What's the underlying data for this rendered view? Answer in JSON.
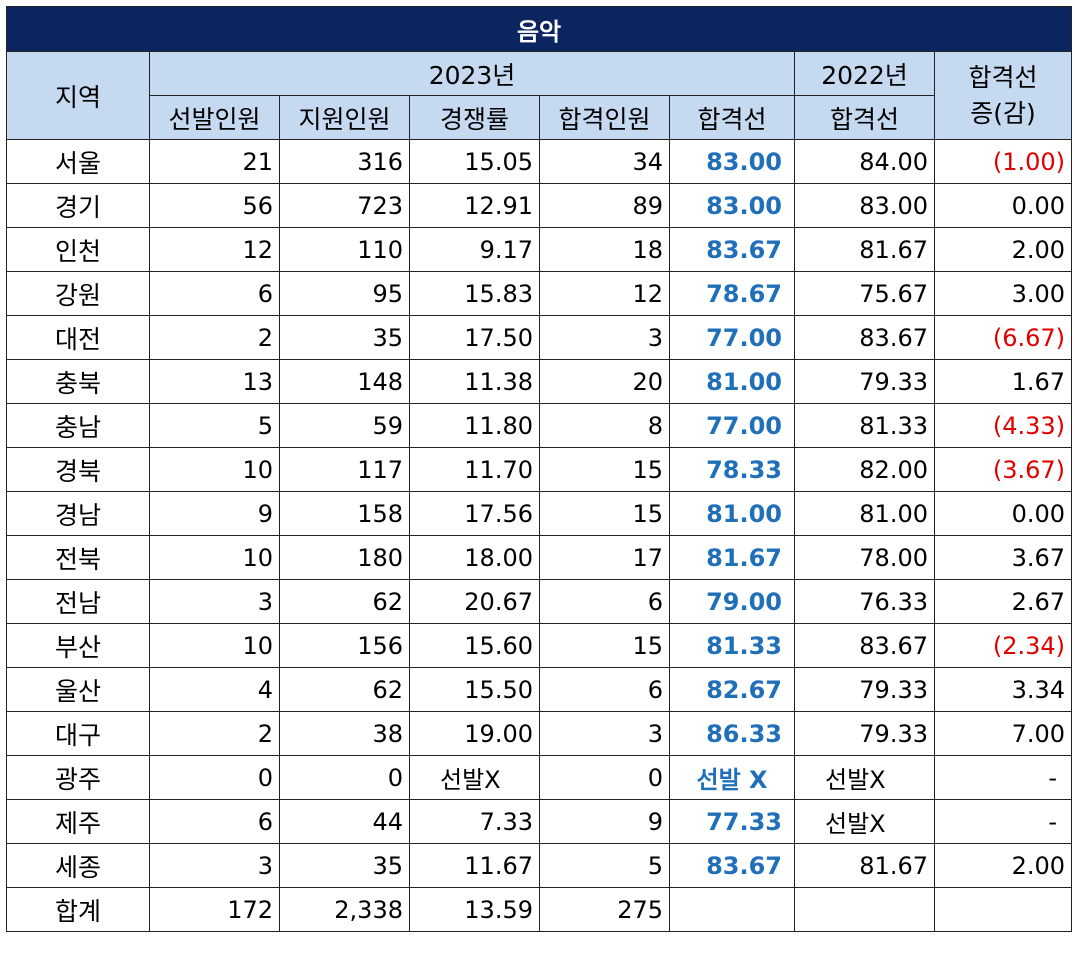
{
  "title": "음악",
  "headers": {
    "region": "지역",
    "year2023": "2023년",
    "year2022": "2022년",
    "change_line1": "합격선",
    "change_line2": "증(감)",
    "sub": [
      "선발인원",
      "지원인원",
      "경쟁률",
      "합격인원",
      "합격선"
    ],
    "sub2022": "합격선"
  },
  "rows": [
    {
      "region": "서울",
      "selected": "21",
      "applicants": "316",
      "ratio": "15.05",
      "passed": "34",
      "cut2023": "83.00",
      "cut2022": "84.00",
      "change": "(1.00)"
    },
    {
      "region": "경기",
      "selected": "56",
      "applicants": "723",
      "ratio": "12.91",
      "passed": "89",
      "cut2023": "83.00",
      "cut2022": "83.00",
      "change": "0.00"
    },
    {
      "region": "인천",
      "selected": "12",
      "applicants": "110",
      "ratio": "9.17",
      "passed": "18",
      "cut2023": "83.67",
      "cut2022": "81.67",
      "change": "2.00"
    },
    {
      "region": "강원",
      "selected": "6",
      "applicants": "95",
      "ratio": "15.83",
      "passed": "12",
      "cut2023": "78.67",
      "cut2022": "75.67",
      "change": "3.00"
    },
    {
      "region": "대전",
      "selected": "2",
      "applicants": "35",
      "ratio": "17.50",
      "passed": "3",
      "cut2023": "77.00",
      "cut2022": "83.67",
      "change": "(6.67)"
    },
    {
      "region": "충북",
      "selected": "13",
      "applicants": "148",
      "ratio": "11.38",
      "passed": "20",
      "cut2023": "81.00",
      "cut2022": "79.33",
      "change": "1.67"
    },
    {
      "region": "충남",
      "selected": "5",
      "applicants": "59",
      "ratio": "11.80",
      "passed": "8",
      "cut2023": "77.00",
      "cut2022": "81.33",
      "change": "(4.33)"
    },
    {
      "region": "경북",
      "selected": "10",
      "applicants": "117",
      "ratio": "11.70",
      "passed": "15",
      "cut2023": "78.33",
      "cut2022": "82.00",
      "change": "(3.67)"
    },
    {
      "region": "경남",
      "selected": "9",
      "applicants": "158",
      "ratio": "17.56",
      "passed": "15",
      "cut2023": "81.00",
      "cut2022": "81.00",
      "change": "0.00"
    },
    {
      "region": "전북",
      "selected": "10",
      "applicants": "180",
      "ratio": "18.00",
      "passed": "17",
      "cut2023": "81.67",
      "cut2022": "78.00",
      "change": "3.67"
    },
    {
      "region": "전남",
      "selected": "3",
      "applicants": "62",
      "ratio": "20.67",
      "passed": "6",
      "cut2023": "79.00",
      "cut2022": "76.33",
      "change": "2.67"
    },
    {
      "region": "부산",
      "selected": "10",
      "applicants": "156",
      "ratio": "15.60",
      "passed": "15",
      "cut2023": "81.33",
      "cut2022": "83.67",
      "change": "(2.34)"
    },
    {
      "region": "울산",
      "selected": "4",
      "applicants": "62",
      "ratio": "15.50",
      "passed": "6",
      "cut2023": "82.67",
      "cut2022": "79.33",
      "change": "3.34"
    },
    {
      "region": "대구",
      "selected": "2",
      "applicants": "38",
      "ratio": "19.00",
      "passed": "3",
      "cut2023": "86.33",
      "cut2022": "79.33",
      "change": "7.00"
    },
    {
      "region": "광주",
      "selected": "0",
      "applicants": "0",
      "ratio": "선발X",
      "passed": "0",
      "cut2023": "선발 X",
      "cut2022": "선발X",
      "change": "-"
    },
    {
      "region": "제주",
      "selected": "6",
      "applicants": "44",
      "ratio": "7.33",
      "passed": "9",
      "cut2023": "77.33",
      "cut2022": "선발X",
      "change": "-"
    },
    {
      "region": "세종",
      "selected": "3",
      "applicants": "35",
      "ratio": "11.67",
      "passed": "5",
      "cut2023": "83.67",
      "cut2022": "81.67",
      "change": "2.00"
    }
  ],
  "total": {
    "region": "합계",
    "selected": "172",
    "applicants": "2,338",
    "ratio": "13.59",
    "passed": "275",
    "cut2023": "",
    "cut2022": "",
    "change": ""
  },
  "colors": {
    "title_bg": "#0a2560",
    "header_bg": "#c5daf0",
    "cut_text": "#1f70b8",
    "negative": "#e00000"
  }
}
